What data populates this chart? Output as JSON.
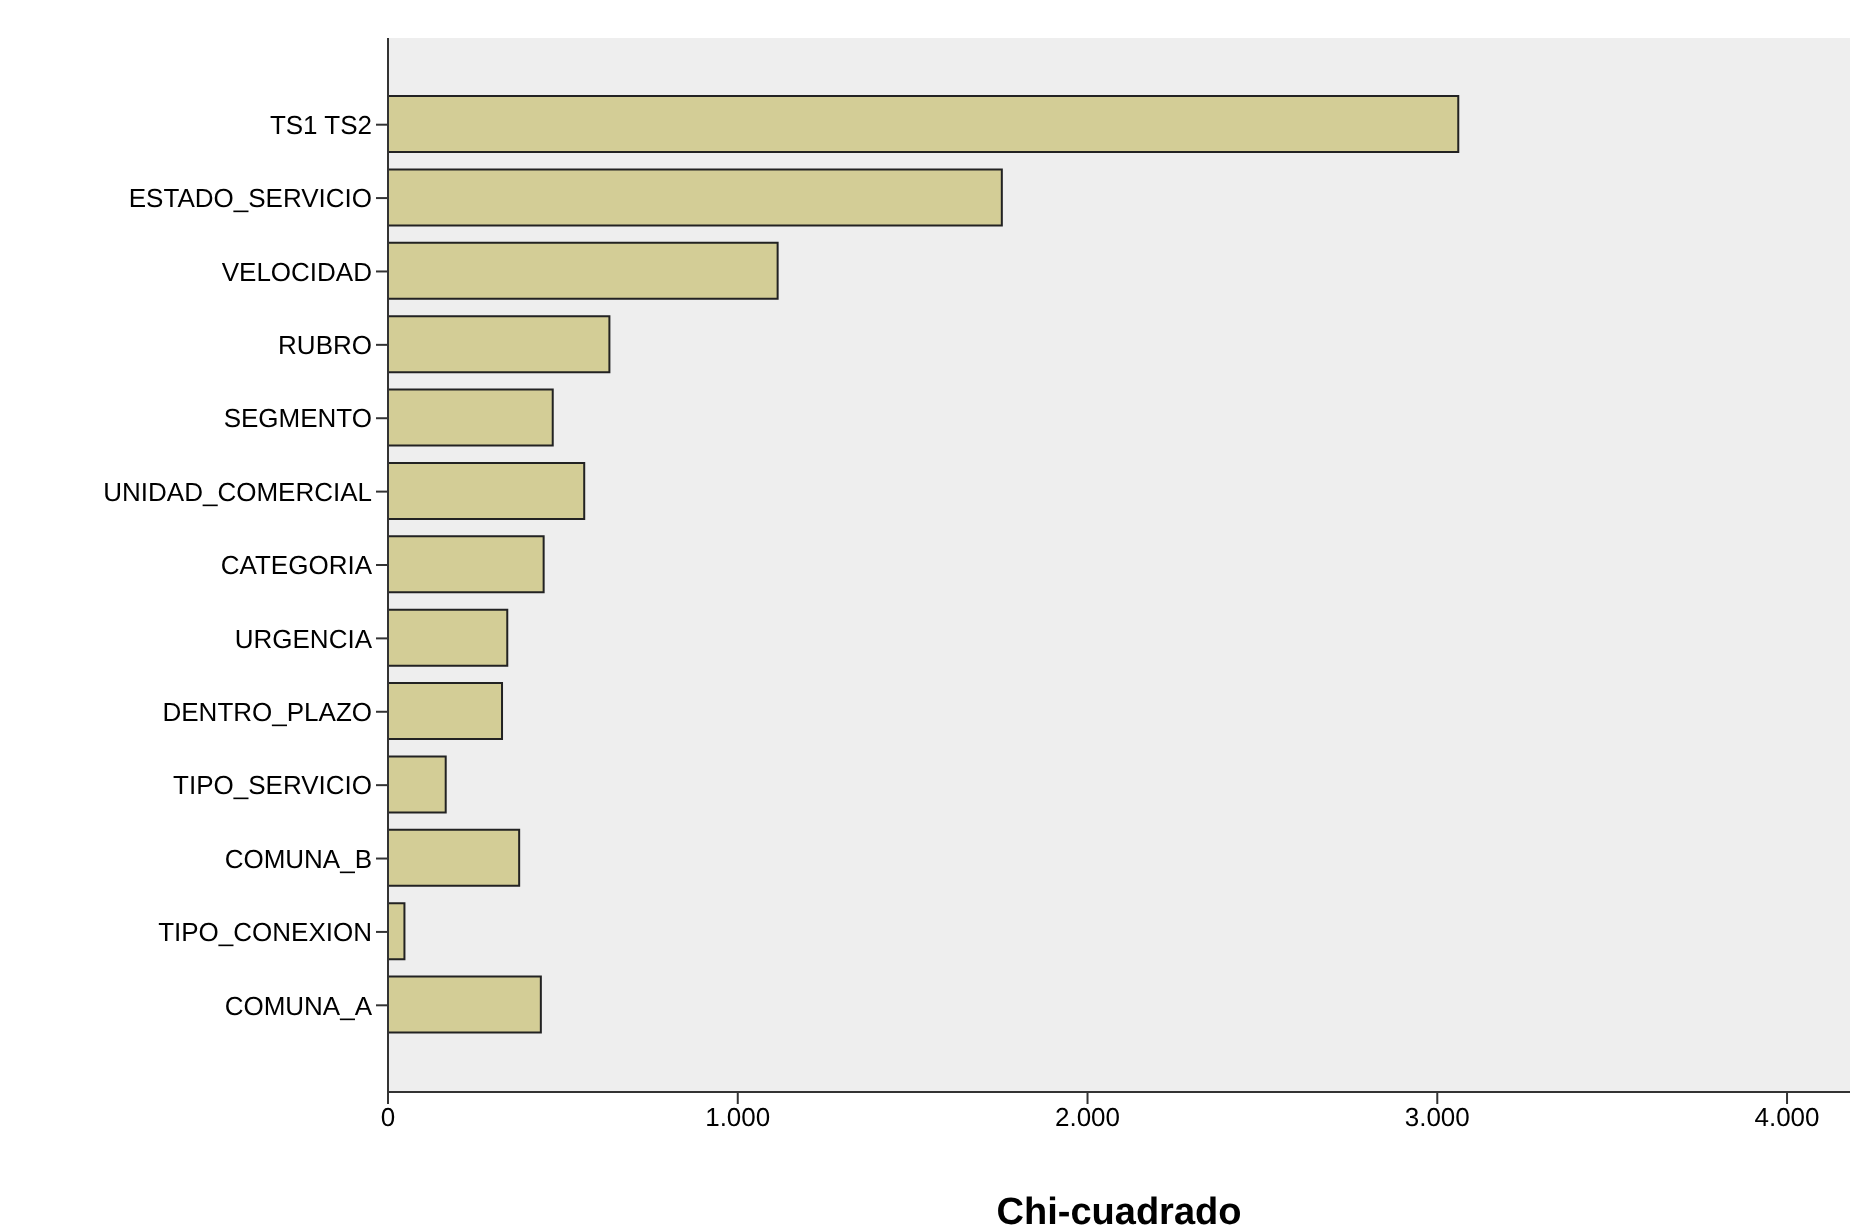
{
  "chart_data": {
    "type": "bar",
    "orientation": "horizontal",
    "xlabel": "Chi-cuadrado",
    "categories": [
      "TS1 TS2",
      "ESTADO_SERVICIO",
      "VELOCIDAD",
      "RUBRO",
      "SEGMENTO",
      "UNIDAD_COMERCIAL",
      "CATEGORIA",
      "URGENCIA",
      "DENTRO_PLAZO",
      "TIPO_SERVICIO",
      "COMUNA_B",
      "TIPO_CONEXION",
      "COMUNA_A"
    ],
    "values": [
      3060,
      1755,
      1114,
      633,
      471,
      561,
      445,
      341,
      326,
      165,
      375,
      47,
      437
    ],
    "color": "#d3cd96",
    "xlim": [
      0,
      4180
    ],
    "xticks": [
      {
        "value": 0,
        "label": "0"
      },
      {
        "value": 1000,
        "label": "1.000"
      },
      {
        "value": 2000,
        "label": "2.000"
      },
      {
        "value": 3000,
        "label": "3.000"
      },
      {
        "value": 4000,
        "label": "4.000"
      }
    ]
  }
}
